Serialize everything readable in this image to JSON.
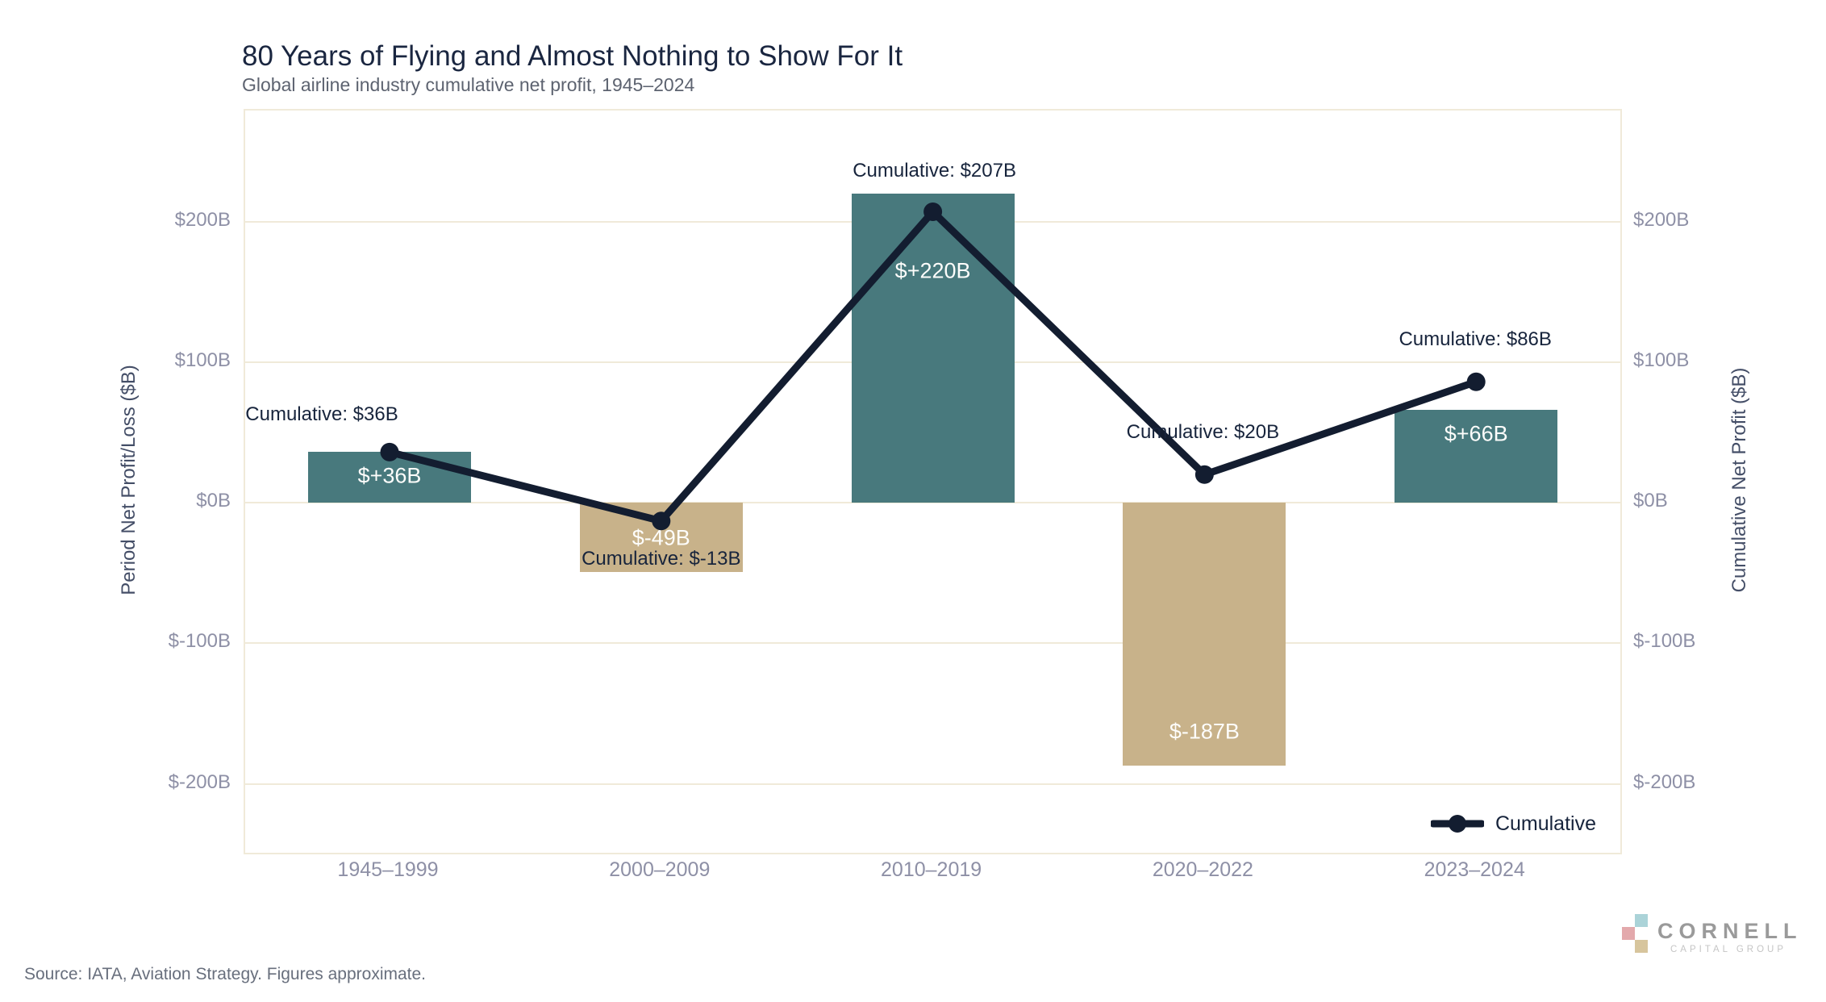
{
  "chart_data": {
    "type": "bar",
    "title": "80 Years of Flying and Almost Nothing to Show For It",
    "subtitle": "Global airline industry cumulative net profit, 1945–2024",
    "categories": [
      "1945–1999",
      "2000–2009",
      "2010–2019",
      "2020–2022",
      "2023–2024"
    ],
    "series": [
      {
        "name": "Period Net Profit/Loss",
        "type": "bar",
        "values": [
          36,
          -49,
          220,
          -187,
          66
        ],
        "bar_labels": [
          "$+36B",
          "$-49B",
          "$+220B",
          "$-187B",
          "$+66B"
        ],
        "positive_color": "#48797d",
        "negative_color": "#c8b28a"
      },
      {
        "name": "Cumulative",
        "type": "line",
        "values": [
          36,
          -13,
          207,
          20,
          86
        ],
        "annotations": [
          "Cumulative: $36B",
          "Cumulative: $-13B",
          "Cumulative: $207B",
          "Cumulative: $20B",
          "Cumulative: $86B"
        ],
        "color": "#131d30"
      }
    ],
    "left_axis": {
      "title": "Period Net Profit/Loss ($B)",
      "ticks": [
        "$200B",
        "$100B",
        "$0B",
        "$-100B",
        "$-200B"
      ],
      "tick_values": [
        200,
        100,
        0,
        -100,
        -200
      ]
    },
    "right_axis": {
      "title": "Cumulative Net Profit ($B)",
      "ticks": [
        "$200B",
        "$100B",
        "$0B",
        "$-100B",
        "$-200B"
      ],
      "tick_values": [
        200,
        100,
        0,
        -100,
        -200
      ]
    },
    "ylim": [
      -249,
      279
    ],
    "grid": true,
    "legend": {
      "label": "Cumulative",
      "position": "bottom-right"
    },
    "colors": {
      "grid": "#f0ead9",
      "tick_text": "#8e90a6",
      "annotation_text": "#17243c",
      "bar_value_text": "#fdfdfb"
    }
  },
  "footer": {
    "source": "Source: IATA, Aviation Strategy. Figures approximate."
  },
  "logo": {
    "name": "CORNELL",
    "subtext": "CAPITAL GROUP",
    "colors": {
      "blue": "#abd3d8",
      "pink": "#e3a9ac",
      "tan": "#d7c59d"
    }
  }
}
